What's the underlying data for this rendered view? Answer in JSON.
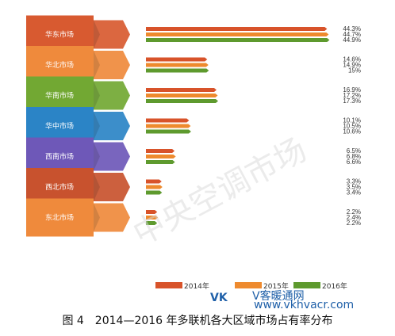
{
  "chart_data": {
    "type": "bar",
    "orientation": "horizontal",
    "categories": [
      "华东市场",
      "华北市场",
      "华南市场",
      "华中市场",
      "西南市场",
      "西北市场",
      "东北市场"
    ],
    "series": [
      {
        "name": "2014年",
        "values": [
          44.3,
          14.6,
          16.9,
          10.1,
          6.5,
          3.3,
          2.2
        ],
        "value_labels": [
          "44.3%",
          "14.6%",
          "16.9%",
          "10.1%",
          "6.5%",
          "3.3%",
          "2.2%"
        ]
      },
      {
        "name": "2015年",
        "values": [
          44.7,
          14.9,
          17.2,
          10.5,
          6.8,
          3.5,
          2.4
        ],
        "value_labels": [
          "44.7%",
          "14.9%",
          "17.2%",
          "10.5%",
          "6.8%",
          "3.5%",
          "2.4%"
        ]
      },
      {
        "name": "2016年",
        "values": [
          44.9,
          15.0,
          17.3,
          10.6,
          6.6,
          3.4,
          2.2
        ],
        "value_labels": [
          "44.9%",
          "15%",
          "17.3%",
          "10.6%",
          "6.6%",
          "3.4%",
          "2.2%"
        ]
      }
    ],
    "series_colors": [
      "#d8532a",
      "#ee8a2e",
      "#5e9a2e"
    ],
    "category_colors": [
      "#d85a30",
      "#ef8a3c",
      "#72a833",
      "#2b84c6",
      "#6e58b8",
      "#c8522e",
      "#ef8a3c"
    ],
    "xlim": [
      0,
      46
    ],
    "legend_position": "bottom",
    "grid": false
  },
  "legend_labels": [
    "2014年",
    "2015年",
    "2016年"
  ],
  "watermark": "中央空调市场",
  "site_logo": "VK",
  "site_text": "V客暖通网",
  "site_url": "www.vkhvacr.com",
  "caption": "图 4　2014—2016 年多联机各大区域市场占有率分布"
}
